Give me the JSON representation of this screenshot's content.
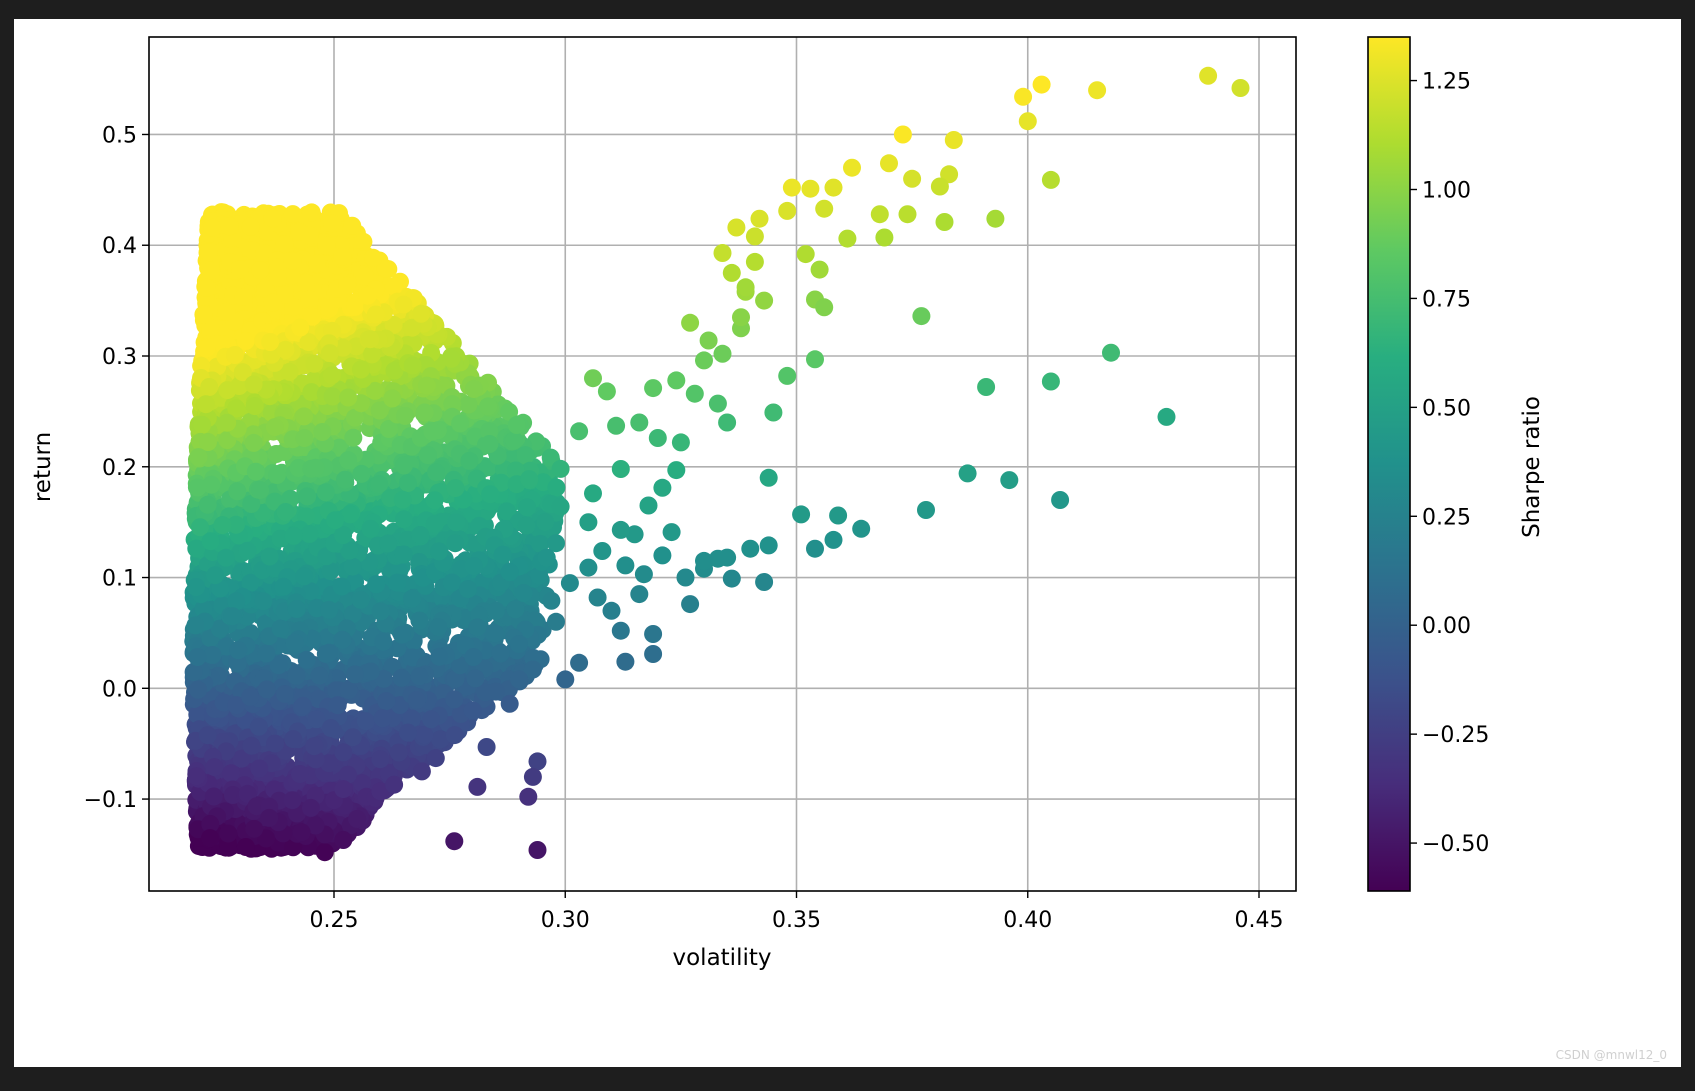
{
  "watermark": "CSDN @mnwl12_0",
  "chart_data": {
    "type": "scatter",
    "title": "",
    "xlabel": "volatility",
    "ylabel": "return",
    "xlim": [
      0.21,
      0.458
    ],
    "ylim": [
      -0.183,
      0.588
    ],
    "xticks": [
      0.25,
      0.3,
      0.35,
      0.4,
      0.45
    ],
    "xtick_labels": [
      "0.25",
      "0.30",
      "0.35",
      "0.40",
      "0.45"
    ],
    "yticks": [
      -0.1,
      0.0,
      0.1,
      0.2,
      0.3,
      0.4,
      0.5
    ],
    "ytick_labels": [
      "−0.1",
      "0.0",
      "0.1",
      "0.2",
      "0.3",
      "0.4",
      "0.5"
    ],
    "grid": true,
    "colormap": "viridis",
    "colorbar": {
      "label": "Sharpe ratio",
      "range": [
        -0.61,
        1.35
      ],
      "ticks": [
        -0.5,
        -0.25,
        0.0,
        0.25,
        0.5,
        0.75,
        1.0,
        1.25
      ],
      "tick_labels": [
        "−0.50",
        "−0.25",
        "0.00",
        "0.25",
        "0.50",
        "0.75",
        "1.00",
        "1.25"
      ]
    },
    "marker_color_rule": "sharpe = return / volatility",
    "points": [
      [
        0.439,
        0.553
      ],
      [
        0.446,
        0.542
      ],
      [
        0.415,
        0.54
      ],
      [
        0.403,
        0.545
      ],
      [
        0.399,
        0.534
      ],
      [
        0.4,
        0.512
      ],
      [
        0.373,
        0.5
      ],
      [
        0.384,
        0.495
      ],
      [
        0.405,
        0.459
      ],
      [
        0.393,
        0.424
      ],
      [
        0.377,
        0.336
      ],
      [
        0.418,
        0.303
      ],
      [
        0.405,
        0.277
      ],
      [
        0.391,
        0.272
      ],
      [
        0.43,
        0.245
      ],
      [
        0.387,
        0.194
      ],
      [
        0.396,
        0.188
      ],
      [
        0.407,
        0.17
      ],
      [
        0.378,
        0.161
      ],
      [
        0.364,
        0.144
      ],
      [
        0.351,
        0.157
      ],
      [
        0.354,
        0.126
      ],
      [
        0.358,
        0.134
      ],
      [
        0.359,
        0.156
      ],
      [
        0.343,
        0.096
      ],
      [
        0.344,
        0.129
      ],
      [
        0.344,
        0.19
      ],
      [
        0.345,
        0.249
      ],
      [
        0.348,
        0.282
      ],
      [
        0.354,
        0.297
      ],
      [
        0.354,
        0.351
      ],
      [
        0.356,
        0.344
      ],
      [
        0.355,
        0.378
      ],
      [
        0.352,
        0.392
      ],
      [
        0.361,
        0.406
      ],
      [
        0.369,
        0.407
      ],
      [
        0.368,
        0.428
      ],
      [
        0.374,
        0.428
      ],
      [
        0.382,
        0.421
      ],
      [
        0.383,
        0.464
      ],
      [
        0.381,
        0.453
      ],
      [
        0.375,
        0.46
      ],
      [
        0.37,
        0.474
      ],
      [
        0.362,
        0.47
      ],
      [
        0.358,
        0.452
      ],
      [
        0.353,
        0.451
      ],
      [
        0.348,
        0.431
      ],
      [
        0.349,
        0.452
      ],
      [
        0.356,
        0.433
      ],
      [
        0.34,
        0.126
      ],
      [
        0.333,
        0.117
      ],
      [
        0.336,
        0.099
      ],
      [
        0.33,
        0.108
      ],
      [
        0.335,
        0.118
      ],
      [
        0.319,
        0.049
      ],
      [
        0.319,
        0.031
      ],
      [
        0.313,
        0.024
      ],
      [
        0.303,
        0.023
      ],
      [
        0.3,
        0.008
      ],
      [
        0.298,
        0.06
      ],
      [
        0.294,
        -0.066
      ],
      [
        0.293,
        -0.08
      ],
      [
        0.292,
        -0.098
      ],
      [
        0.294,
        -0.146
      ],
      [
        0.276,
        -0.138
      ],
      [
        0.281,
        -0.089
      ],
      [
        0.272,
        -0.063
      ],
      [
        0.269,
        -0.075
      ],
      [
        0.283,
        -0.053
      ],
      [
        0.248,
        -0.148
      ],
      [
        0.252,
        -0.137
      ],
      [
        0.248,
        -0.132
      ],
      [
        0.246,
        -0.124
      ],
      [
        0.243,
        -0.13
      ],
      [
        0.239,
        -0.131
      ],
      [
        0.257,
        -0.098
      ],
      [
        0.259,
        -0.099
      ],
      [
        0.255,
        -0.118
      ],
      [
        0.238,
        -0.121
      ],
      [
        0.323,
        0.141
      ],
      [
        0.33,
        0.115
      ],
      [
        0.327,
        0.076
      ],
      [
        0.326,
        0.1
      ],
      [
        0.316,
        0.085
      ],
      [
        0.31,
        0.07
      ],
      [
        0.312,
        0.052
      ],
      [
        0.307,
        0.082
      ],
      [
        0.305,
        0.109
      ],
      [
        0.315,
        0.139
      ],
      [
        0.318,
        0.165
      ],
      [
        0.321,
        0.181
      ],
      [
        0.324,
        0.197
      ],
      [
        0.325,
        0.222
      ],
      [
        0.32,
        0.226
      ],
      [
        0.316,
        0.24
      ],
      [
        0.311,
        0.237
      ],
      [
        0.309,
        0.268
      ],
      [
        0.303,
        0.232
      ],
      [
        0.306,
        0.28
      ],
      [
        0.319,
        0.271
      ],
      [
        0.324,
        0.278
      ],
      [
        0.328,
        0.266
      ],
      [
        0.333,
        0.257
      ],
      [
        0.335,
        0.24
      ],
      [
        0.33,
        0.296
      ],
      [
        0.334,
        0.302
      ],
      [
        0.338,
        0.325
      ],
      [
        0.331,
        0.314
      ],
      [
        0.327,
        0.33
      ],
      [
        0.339,
        0.358
      ],
      [
        0.341,
        0.385
      ],
      [
        0.336,
        0.375
      ],
      [
        0.334,
        0.393
      ],
      [
        0.341,
        0.408
      ],
      [
        0.342,
        0.424
      ],
      [
        0.337,
        0.416
      ],
      [
        0.339,
        0.362
      ],
      [
        0.343,
        0.35
      ],
      [
        0.338,
        0.335
      ],
      [
        0.312,
        0.198
      ],
      [
        0.306,
        0.176
      ],
      [
        0.299,
        0.164
      ],
      [
        0.305,
        0.15
      ],
      [
        0.312,
        0.143
      ],
      [
        0.321,
        0.12
      ],
      [
        0.317,
        0.103
      ],
      [
        0.313,
        0.111
      ],
      [
        0.308,
        0.124
      ],
      [
        0.298,
        0.131
      ],
      [
        0.296,
        0.118
      ],
      [
        0.301,
        0.095
      ],
      [
        0.297,
        0.079
      ],
      [
        0.291,
        0.086
      ],
      [
        0.288,
        0.105
      ],
      [
        0.285,
        0.07
      ],
      [
        0.281,
        0.055
      ],
      [
        0.286,
        0.032
      ],
      [
        0.29,
        0.04
      ],
      [
        0.293,
        0.017
      ],
      [
        0.29,
        0.008
      ],
      [
        0.285,
        -0.003
      ],
      [
        0.288,
        -0.014
      ],
      [
        0.28,
        -0.02
      ],
      [
        0.276,
        -0.01
      ],
      [
        0.271,
        -0.028
      ],
      [
        0.266,
        -0.04
      ],
      [
        0.264,
        -0.058
      ],
      [
        0.26,
        -0.064
      ],
      [
        0.253,
        -0.078
      ],
      [
        0.26,
        -0.093
      ],
      [
        0.263,
        -0.087
      ],
      [
        0.25,
        -0.101
      ],
      [
        0.246,
        -0.097
      ],
      [
        0.242,
        -0.113
      ],
      [
        0.236,
        -0.107
      ],
      [
        0.236,
        -0.117
      ],
      [
        0.241,
        -0.101
      ],
      [
        0.245,
        -0.108
      ],
      [
        0.252,
        -0.091
      ]
    ]
  }
}
